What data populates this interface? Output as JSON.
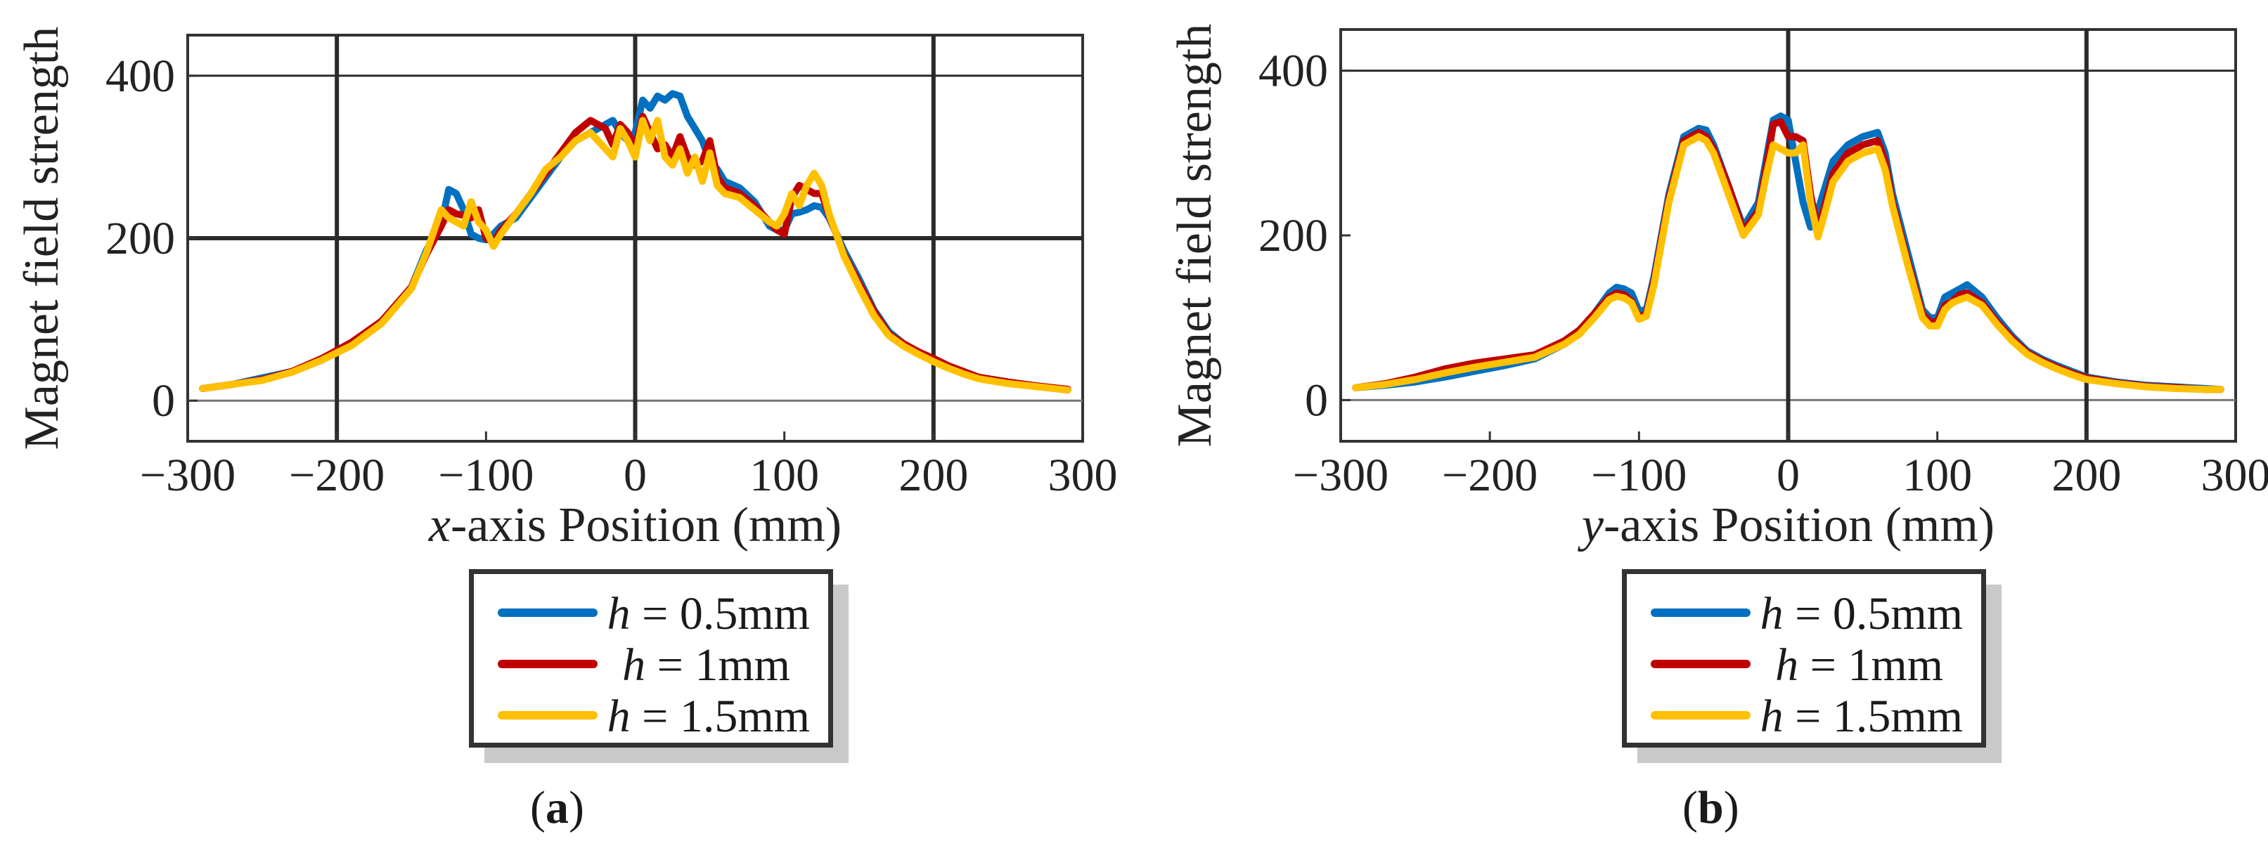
{
  "chart_data": [
    {
      "type": "line",
      "panel_label": "a",
      "ylabel": "Magnet field strength",
      "xlabel_var": "x",
      "xlabel_rest": "-axis Position (mm)",
      "xlim": [
        -300,
        300
      ],
      "ylim": [
        -50,
        450
      ],
      "xticks": [
        -300,
        -200,
        -100,
        0,
        100,
        200,
        300
      ],
      "yticks": [
        0,
        200,
        400
      ],
      "xtick_labels": [
        "−300",
        "−200",
        "−100",
        "0",
        "100",
        "200",
        "300"
      ],
      "ytick_labels": [
        "0",
        "200",
        "400"
      ],
      "vgrid": [
        -200,
        0,
        200
      ],
      "hgrid": [
        0,
        200,
        400
      ],
      "legend_var": "h",
      "series": [
        {
          "name": "h = 0.5mm",
          "value_label": "= 0.5mm",
          "color": "#0070c0",
          "x": [
            -290,
            -270,
            -250,
            -230,
            -210,
            -190,
            -170,
            -150,
            -140,
            -130,
            -125,
            -120,
            -115,
            -110,
            -105,
            -100,
            -95,
            -90,
            -80,
            -70,
            -60,
            -50,
            -40,
            -30,
            -20,
            -15,
            -10,
            -5,
            0,
            5,
            10,
            15,
            20,
            25,
            30,
            35,
            40,
            45,
            50,
            55,
            60,
            70,
            80,
            90,
            95,
            100,
            105,
            110,
            115,
            120,
            125,
            130,
            140,
            150,
            160,
            170,
            180,
            190,
            200,
            210,
            220,
            230,
            250,
            270,
            290
          ],
          "y": [
            15,
            20,
            28,
            36,
            50,
            70,
            96,
            140,
            185,
            218,
            260,
            255,
            235,
            205,
            200,
            198,
            205,
            215,
            225,
            250,
            275,
            300,
            320,
            330,
            340,
            345,
            330,
            320,
            330,
            370,
            360,
            375,
            370,
            378,
            375,
            350,
            335,
            320,
            295,
            285,
            270,
            262,
            245,
            215,
            210,
            210,
            230,
            232,
            235,
            240,
            238,
            225,
            185,
            150,
            112,
            85,
            70,
            60,
            50,
            42,
            35,
            28,
            22,
            18,
            13
          ]
        },
        {
          "name": "h = 1mm",
          "value_label": "= 1mm",
          "color": "#c00000",
          "x": [
            -290,
            -270,
            -250,
            -230,
            -210,
            -190,
            -170,
            -150,
            -140,
            -130,
            -125,
            -120,
            -115,
            -110,
            -105,
            -100,
            -95,
            -90,
            -80,
            -70,
            -60,
            -50,
            -40,
            -30,
            -20,
            -15,
            -10,
            -5,
            0,
            5,
            10,
            15,
            20,
            25,
            30,
            35,
            40,
            45,
            50,
            55,
            60,
            70,
            80,
            90,
            95,
            100,
            105,
            110,
            115,
            120,
            125,
            130,
            140,
            150,
            160,
            170,
            180,
            190,
            200,
            210,
            220,
            230,
            250,
            270,
            290
          ],
          "y": [
            15,
            20,
            26,
            36,
            52,
            72,
            98,
            140,
            180,
            215,
            235,
            230,
            228,
            225,
            235,
            200,
            195,
            210,
            230,
            255,
            280,
            305,
            330,
            345,
            335,
            315,
            340,
            330,
            310,
            350,
            330,
            310,
            315,
            300,
            325,
            300,
            290,
            295,
            320,
            275,
            262,
            255,
            240,
            220,
            210,
            205,
            250,
            265,
            260,
            255,
            255,
            228,
            180,
            145,
            110,
            82,
            70,
            60,
            52,
            43,
            36,
            29,
            23,
            18,
            14
          ]
        },
        {
          "name": "h = 1.5mm",
          "value_label": "= 1.5mm",
          "color": "#ffc000",
          "x": [
            -290,
            -270,
            -250,
            -230,
            -210,
            -190,
            -170,
            -150,
            -140,
            -130,
            -125,
            -120,
            -115,
            -110,
            -105,
            -100,
            -95,
            -90,
            -80,
            -70,
            -60,
            -50,
            -40,
            -30,
            -20,
            -15,
            -10,
            -5,
            0,
            5,
            10,
            15,
            20,
            25,
            30,
            35,
            40,
            45,
            50,
            55,
            60,
            70,
            80,
            90,
            95,
            100,
            105,
            110,
            115,
            120,
            125,
            130,
            140,
            150,
            160,
            170,
            180,
            190,
            200,
            210,
            220,
            230,
            250,
            270,
            290
          ],
          "y": [
            15,
            20,
            25,
            35,
            50,
            68,
            95,
            138,
            182,
            235,
            225,
            220,
            215,
            245,
            220,
            210,
            190,
            205,
            230,
            255,
            285,
            300,
            320,
            330,
            310,
            300,
            335,
            320,
            300,
            345,
            320,
            345,
            300,
            290,
            310,
            280,
            300,
            270,
            305,
            265,
            255,
            250,
            235,
            220,
            215,
            230,
            255,
            240,
            265,
            280,
            265,
            230,
            178,
            140,
            105,
            80,
            67,
            57,
            48,
            40,
            33,
            27,
            21,
            17,
            13
          ]
        }
      ]
    },
    {
      "type": "line",
      "panel_label": "b",
      "ylabel": "Magnet field strength",
      "xlabel_var": "y",
      "xlabel_rest": "-axis Position (mm)",
      "xlim": [
        -300,
        300
      ],
      "ylim": [
        -50,
        450
      ],
      "xticks": [
        -300,
        -200,
        -100,
        0,
        100,
        200,
        300
      ],
      "yticks": [
        0,
        200,
        400
      ],
      "xtick_labels": [
        "−300",
        "−200",
        "−100",
        "0",
        "100",
        "200",
        "300"
      ],
      "ytick_labels": [
        "0",
        "200",
        "400"
      ],
      "vgrid": [
        0,
        200
      ],
      "hgrid": [
        0,
        400
      ],
      "legend_var": "h",
      "series": [
        {
          "name": "h = 0.5mm",
          "value_label": "= 0.5mm",
          "color": "#0070c0",
          "x": [
            -290,
            -270,
            -250,
            -230,
            -210,
            -190,
            -170,
            -150,
            -140,
            -130,
            -120,
            -115,
            -110,
            -105,
            -100,
            -95,
            -90,
            -80,
            -70,
            -60,
            -55,
            -50,
            -40,
            -30,
            -20,
            -15,
            -10,
            -5,
            0,
            5,
            10,
            15,
            20,
            25,
            30,
            40,
            50,
            60,
            65,
            70,
            80,
            90,
            95,
            100,
            105,
            110,
            115,
            120,
            130,
            140,
            150,
            160,
            170,
            180,
            190,
            200,
            220,
            240,
            260,
            280,
            290
          ],
          "y": [
            15,
            18,
            22,
            28,
            35,
            42,
            50,
            68,
            82,
            105,
            130,
            137,
            135,
            130,
            108,
            110,
            150,
            250,
            320,
            330,
            328,
            310,
            260,
            210,
            240,
            290,
            340,
            345,
            340,
            290,
            240,
            210,
            230,
            260,
            290,
            310,
            320,
            325,
            300,
            250,
            180,
            110,
            100,
            100,
            125,
            130,
            135,
            140,
            125,
            100,
            78,
            60,
            50,
            42,
            35,
            28,
            22,
            18,
            16,
            14,
            13
          ]
        },
        {
          "name": "h = 1mm",
          "value_label": "= 1mm",
          "color": "#c00000",
          "x": [
            -290,
            -270,
            -250,
            -230,
            -210,
            -190,
            -170,
            -150,
            -140,
            -130,
            -120,
            -115,
            -110,
            -105,
            -100,
            -95,
            -90,
            -80,
            -70,
            -60,
            -55,
            -50,
            -40,
            -30,
            -20,
            -15,
            -10,
            -5,
            0,
            5,
            10,
            15,
            20,
            25,
            30,
            40,
            50,
            60,
            65,
            70,
            80,
            90,
            95,
            100,
            105,
            110,
            115,
            120,
            130,
            140,
            150,
            160,
            170,
            180,
            190,
            200,
            220,
            240,
            260,
            280,
            290
          ],
          "y": [
            15,
            20,
            28,
            38,
            45,
            50,
            55,
            72,
            85,
            105,
            125,
            130,
            128,
            120,
            100,
            105,
            145,
            245,
            315,
            325,
            320,
            305,
            260,
            205,
            230,
            280,
            335,
            338,
            320,
            320,
            315,
            250,
            205,
            240,
            275,
            300,
            310,
            315,
            290,
            240,
            170,
            105,
            95,
            95,
            115,
            120,
            128,
            130,
            118,
            95,
            75,
            58,
            48,
            40,
            33,
            27,
            21,
            17,
            15,
            13,
            13
          ]
        },
        {
          "name": "h = 1.5mm",
          "value_label": "= 1.5mm",
          "color": "#ffc000",
          "x": [
            -290,
            -270,
            -250,
            -230,
            -210,
            -190,
            -170,
            -150,
            -140,
            -130,
            -120,
            -115,
            -110,
            -105,
            -100,
            -95,
            -90,
            -80,
            -70,
            -60,
            -55,
            -50,
            -40,
            -30,
            -20,
            -15,
            -10,
            -5,
            0,
            5,
            10,
            15,
            20,
            25,
            30,
            40,
            50,
            60,
            65,
            70,
            80,
            90,
            95,
            100,
            105,
            110,
            115,
            120,
            130,
            140,
            150,
            160,
            170,
            180,
            190,
            200,
            220,
            240,
            260,
            280,
            290
          ],
          "y": [
            15,
            19,
            25,
            33,
            40,
            46,
            52,
            68,
            80,
            100,
            122,
            126,
            124,
            118,
            98,
            102,
            140,
            240,
            310,
            320,
            315,
            300,
            250,
            200,
            225,
            270,
            310,
            305,
            300,
            300,
            310,
            240,
            198,
            230,
            265,
            290,
            300,
            305,
            280,
            235,
            165,
            100,
            90,
            90,
            110,
            118,
            122,
            125,
            115,
            92,
            72,
            56,
            46,
            38,
            31,
            25,
            20,
            16,
            14,
            13,
            13
          ]
        }
      ]
    }
  ]
}
